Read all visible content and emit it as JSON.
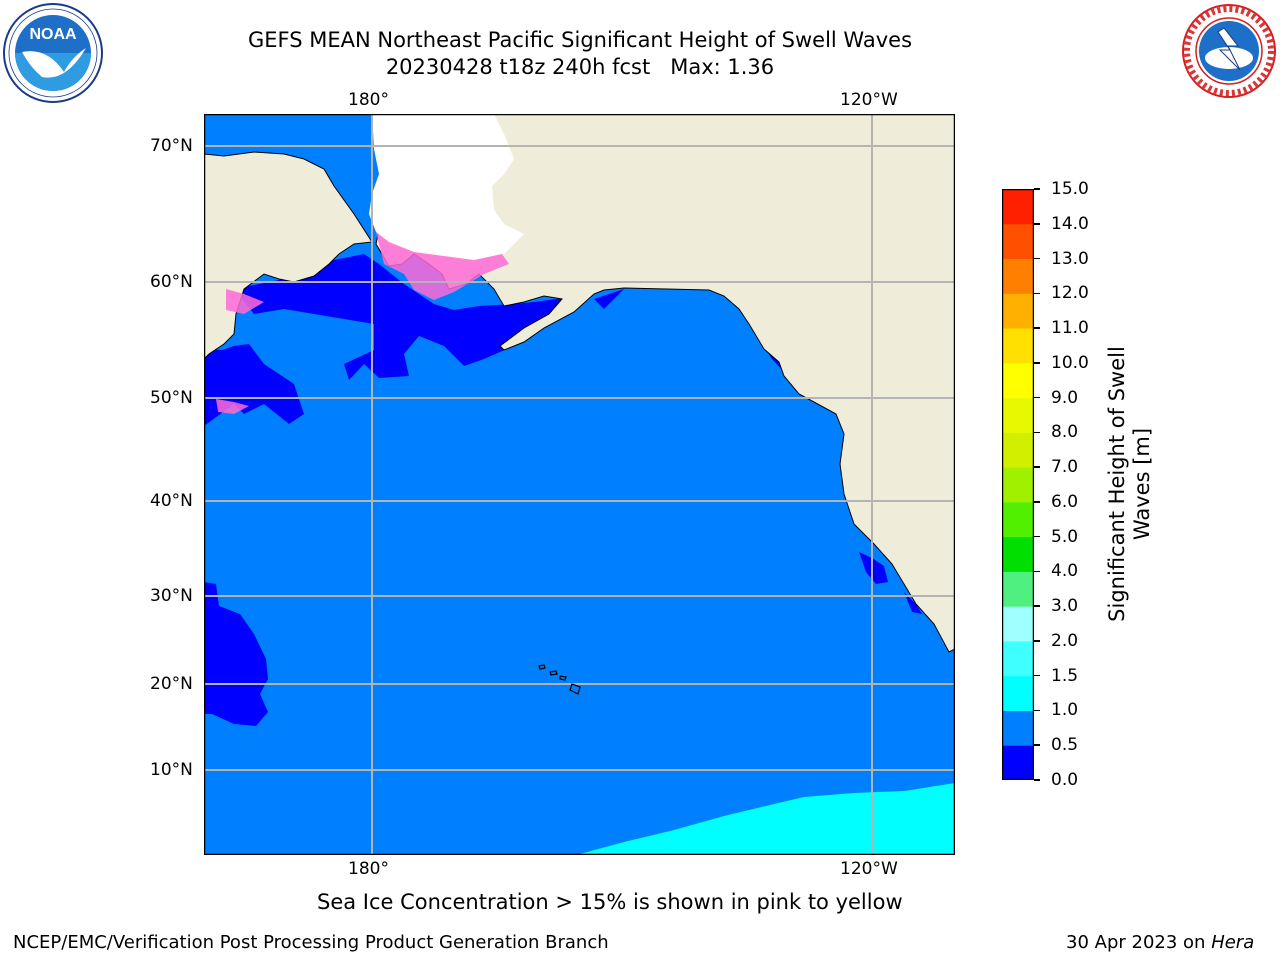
{
  "header": {
    "title_line1": "GEFS MEAN Northeast Pacific Significant Height of Swell Waves",
    "title_line2": "20230428 t18z 240h fcst   Max: 1.36"
  },
  "logos": {
    "noaa": {
      "text": "NOAA",
      "ring_text": "NATIONAL OCEANIC AND ATMOSPHERIC ADMINISTRATION · U.S. DEPARTMENT OF COMMERCE"
    },
    "nws": {
      "ring_text": "NATIONAL WEATHER SERVICE"
    }
  },
  "map": {
    "x_ticks_top": [
      "180°",
      "120°W"
    ],
    "x_ticks_bottom": [
      "180°",
      "120°W"
    ],
    "y_ticks": [
      "70°N",
      "60°N",
      "50°N",
      "40°N",
      "30°N",
      "20°N",
      "10°N"
    ],
    "colors": {
      "land": "#efedda",
      "ocean_main": "#0080ff",
      "ocean_low": "#0000ff",
      "ocean_high": "#00ffff",
      "ice": "#ffffff"
    }
  },
  "colorbar": {
    "label": "Significant Height of Swell Waves [m]",
    "tick_labels": [
      "15.0",
      "14.0",
      "13.0",
      "12.0",
      "11.0",
      "10.0",
      "9.0",
      "8.0",
      "7.0",
      "6.0",
      "5.0",
      "4.0",
      "3.0",
      "2.0",
      "1.5",
      "1.0",
      "0.5",
      "0.0"
    ],
    "colors": [
      "#0000ff",
      "#0080ff",
      "#00ffff",
      "#40ffff",
      "#a0ffff",
      "#50f080",
      "#00e000",
      "#50f000",
      "#a0f000",
      "#d0f000",
      "#e8f800",
      "#ffff00",
      "#ffe000",
      "#ffb000",
      "#ff8000",
      "#ff5000",
      "#ff2000",
      "#ff0000"
    ]
  },
  "footer": {
    "note": "Sea Ice Concentration > 15% is shown in pink to yellow",
    "credit_left": "NCEP/EMC/Verification Post Processing Product Generation Branch",
    "credit_right_prefix": "30 Apr 2023 on",
    "credit_right_host": "Hera"
  }
}
